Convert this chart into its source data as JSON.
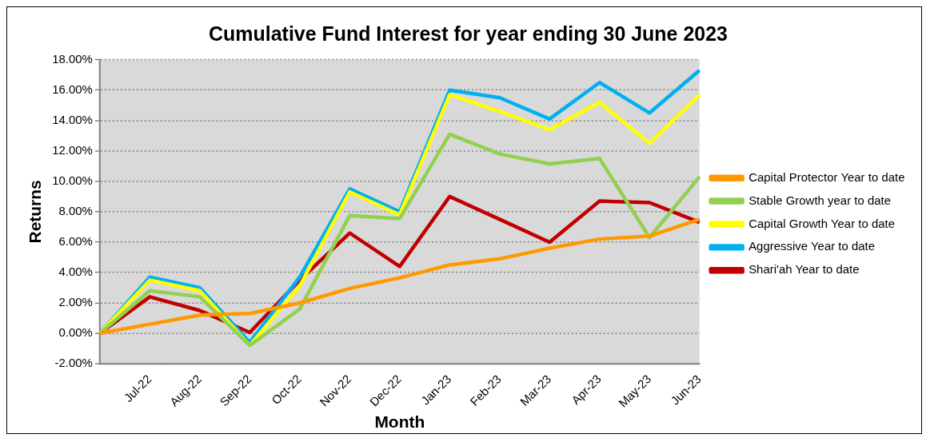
{
  "chart_data": {
    "type": "line",
    "title": "Cumulative Fund Interest for year ending 30 June 2023",
    "xlabel": "Month",
    "ylabel": "Returns",
    "categories": [
      null,
      "Jul-22",
      "Aug-22",
      "Sep-22",
      "Oct-22",
      "Nov-22",
      "Dec-22",
      "Jan-23",
      "Feb-23",
      "Mar-23",
      "Apr-23",
      "May-23",
      "Jun-23"
    ],
    "series": [
      {
        "name": "Capital Protector Year to date",
        "color": "#ff9900",
        "values": [
          0,
          0.6,
          1.2,
          1.3,
          2.0,
          2.95,
          3.65,
          4.5,
          4.9,
          5.6,
          6.2,
          6.4,
          7.5
        ]
      },
      {
        "name": "Stable Growth year to date",
        "color": "#92d050",
        "values": [
          0,
          2.8,
          2.4,
          -0.8,
          1.6,
          7.75,
          7.55,
          13.1,
          11.8,
          11.15,
          11.5,
          6.3,
          10.3
        ]
      },
      {
        "name": "Capital Growth Year to date",
        "color": "#ffff00",
        "values": [
          0,
          3.5,
          2.8,
          -0.8,
          3.1,
          9.3,
          7.8,
          15.7,
          14.6,
          13.4,
          15.2,
          12.5,
          15.7
        ]
      },
      {
        "name": "Aggressive Year to date",
        "color": "#00b0f0",
        "values": [
          0,
          3.7,
          3.0,
          -0.6,
          3.7,
          9.5,
          8.0,
          16.0,
          15.5,
          14.1,
          16.5,
          14.5,
          17.3
        ]
      },
      {
        "name": "Shari'ah Year to date",
        "color": "#c00000",
        "values": [
          0,
          2.4,
          1.5,
          0.05,
          3.5,
          6.6,
          4.4,
          9.0,
          7.5,
          6.0,
          8.7,
          8.6,
          7.3
        ]
      }
    ],
    "ylim": [
      -2,
      18
    ],
    "yticks": [
      {
        "value": -2,
        "label": "-2.00%"
      },
      {
        "value": 0,
        "label": "0.00%"
      },
      {
        "value": 2,
        "label": "2.00%"
      },
      {
        "value": 4,
        "label": "4.00%"
      },
      {
        "value": 6,
        "label": "6.00%"
      },
      {
        "value": 8,
        "label": "8.00%"
      },
      {
        "value": 10,
        "label": "10.00%"
      },
      {
        "value": 12,
        "label": "12.00%"
      },
      {
        "value": 14,
        "label": "14.00%"
      },
      {
        "value": 16,
        "label": "16.00%"
      },
      {
        "value": 18,
        "label": "18.00%"
      }
    ],
    "grid": "y",
    "legend": "right",
    "marker": "none",
    "line_style": "solid"
  }
}
